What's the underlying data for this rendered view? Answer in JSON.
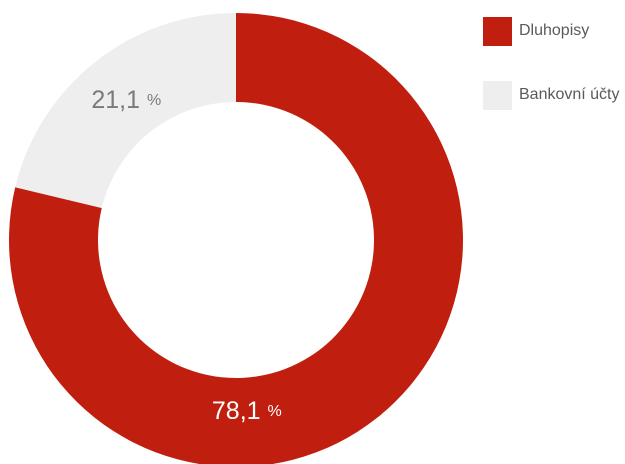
{
  "chart_data": {
    "type": "pie",
    "variant": "donut",
    "legend_position": "top-right",
    "slices": [
      {
        "name": "Dluhopisy",
        "value": 78.1,
        "label": "78,1",
        "unit": "%",
        "color": "#c01f0f",
        "label_color": "#ffffff"
      },
      {
        "name": "Bankovní účty",
        "value": 21.1,
        "label": "21,1",
        "unit": "%",
        "color": "#eeeeee",
        "label_color": "#7a7a7a"
      }
    ]
  }
}
